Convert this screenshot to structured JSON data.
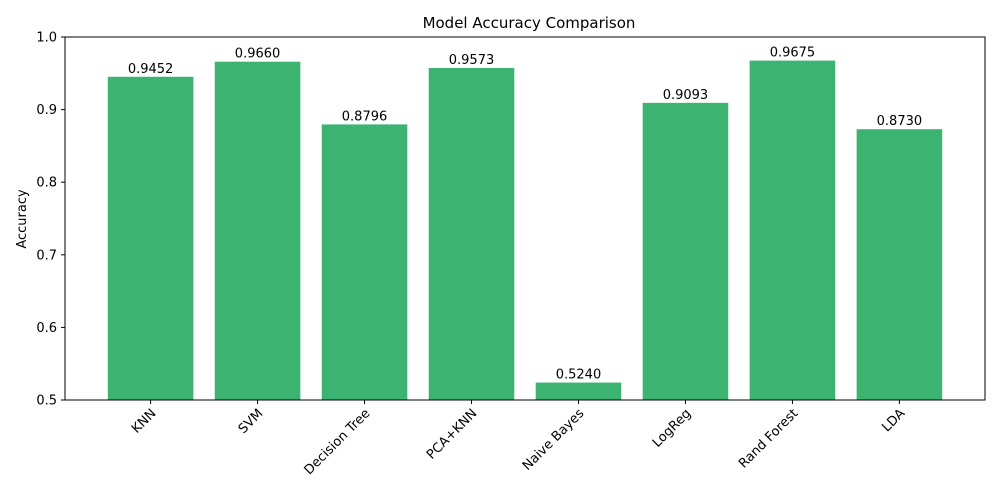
{
  "chart_data": {
    "type": "bar",
    "title": "Model Accuracy Comparison",
    "xlabel": "",
    "ylabel": "Accuracy",
    "ylim": [
      0.5,
      1.0
    ],
    "yticks": [
      "0.5",
      "0.6",
      "0.7",
      "0.8",
      "0.9",
      "1.0"
    ],
    "categories": [
      "KNN",
      "SVM",
      "Decision Tree",
      "PCA+KNN",
      "Naive Bayes",
      "LogReg",
      "Rand Forest",
      "LDA"
    ],
    "values": [
      0.9452,
      0.966,
      0.8796,
      0.9573,
      0.524,
      0.9093,
      0.9675,
      0.873
    ],
    "value_labels": [
      "0.9452",
      "0.9660",
      "0.8796",
      "0.9573",
      "0.5240",
      "0.9093",
      "0.9675",
      "0.8730"
    ],
    "bar_color": "#3cb371",
    "grid": false,
    "legend": false
  }
}
